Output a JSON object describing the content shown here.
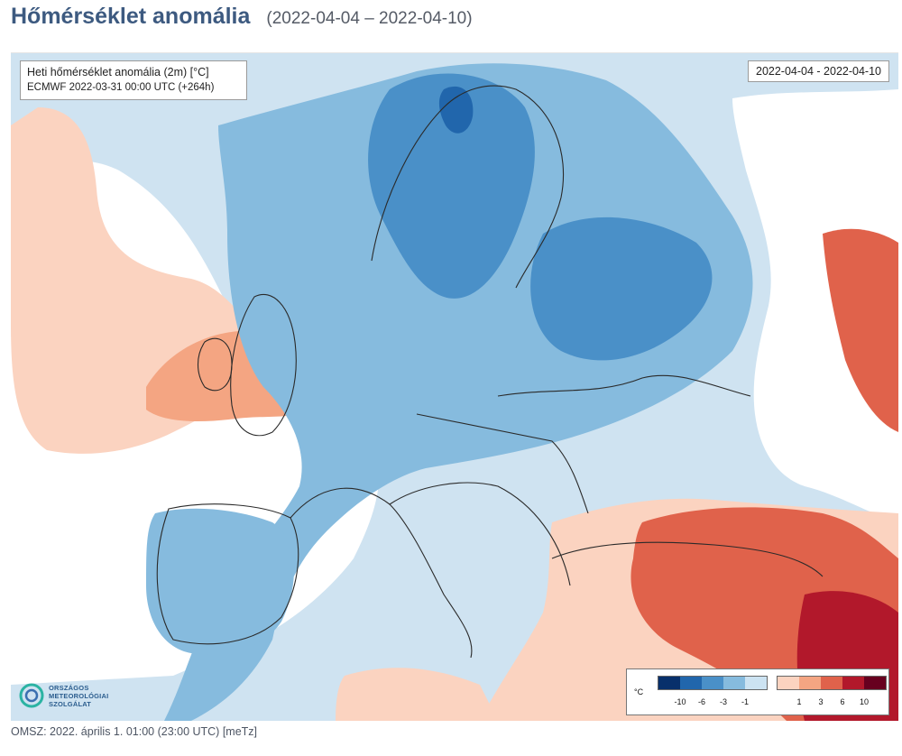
{
  "header": {
    "title": "Hőmérséklet anomália",
    "date_range": "(2022-04-04 – 2022-04-10)"
  },
  "map": {
    "info_line1": "Heti hőmérséklet anomália (2m) [°C]",
    "info_line2": "ECMWF 2022-03-31 00:00 UTC (+264h)",
    "date_box": "2022-04-04 - 2022-04-10",
    "colors": {
      "cold_strong": "#08306b",
      "cold_1": "#2166ac",
      "cold_2": "#4a90c8",
      "cold_3": "#86bbde",
      "cold_4": "#cce3f2",
      "neutral": "#ffffff",
      "warm_1": "#fbd3c0",
      "warm_2": "#f4a582",
      "warm_3": "#e0624b",
      "warm_4": "#b2182b",
      "warm_strong": "#67001f",
      "border": "#2a2a2a"
    },
    "legend": {
      "unit": "°C",
      "cold_colors": [
        "#08306b",
        "#2166ac",
        "#4a90c8",
        "#86bbde",
        "#cce3f2"
      ],
      "warm_colors": [
        "#fbd3c0",
        "#f4a582",
        "#e0624b",
        "#b2182b",
        "#67001f"
      ],
      "cold_ticks": [
        "-10",
        "-6",
        "-3",
        "-1"
      ],
      "warm_ticks": [
        "1",
        "3",
        "6",
        "10"
      ]
    },
    "logo": {
      "line1": "ORSZÁGOS",
      "line2": "METEOROLÓGIAI",
      "line3": "SZOLGÁLAT"
    }
  },
  "footer": {
    "text": "OMSZ: 2022. április 1. 01:00 (23:00  UTC)  [meTz]"
  }
}
